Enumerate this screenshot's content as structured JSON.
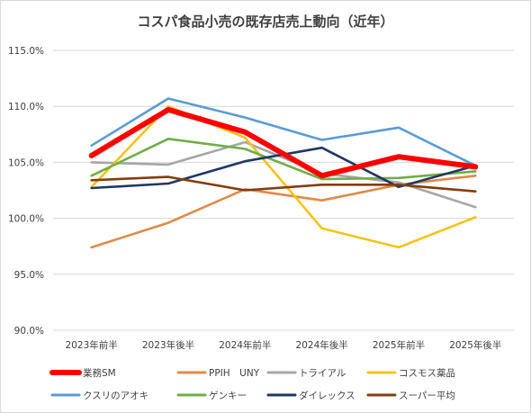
{
  "chart_data": {
    "type": "line",
    "title": "コスパ食品小売の既存店売上動向（近年）",
    "xlabel": "",
    "ylabel": "",
    "categories": [
      "2023年前半",
      "2023年後半",
      "2024年前半",
      "2024年後半",
      "2025年前半",
      "2025年後半"
    ],
    "ylim": [
      90.0,
      115.0
    ],
    "yticks": [
      "90.0%",
      "95.0%",
      "100.0%",
      "105.0%",
      "110.0%",
      "115.0%"
    ],
    "ytick_values": [
      90,
      95,
      100,
      105,
      110,
      115
    ],
    "grid": true,
    "legend_position": "bottom",
    "series": [
      {
        "name": "業務SM",
        "color": "#ff0000",
        "emphasis": true,
        "values": [
          105.6,
          109.7,
          107.7,
          103.8,
          105.5,
          104.6
        ]
      },
      {
        "name": "PPIH　UNY",
        "color": "#e08a47",
        "emphasis": false,
        "values": [
          97.4,
          99.6,
          102.6,
          101.6,
          103.0,
          103.8
        ]
      },
      {
        "name": "トライアル",
        "color": "#a6a6a6",
        "emphasis": false,
        "values": [
          105.0,
          104.8,
          106.8,
          104.0,
          103.2,
          101.0
        ]
      },
      {
        "name": "コスモス薬品",
        "color": "#f5c316",
        "emphasis": false,
        "values": [
          102.8,
          110.0,
          107.2,
          99.1,
          97.4,
          100.1
        ]
      },
      {
        "name": "クスリのアオキ",
        "color": "#5b9bd5",
        "emphasis": false,
        "values": [
          106.5,
          110.7,
          109.0,
          107.0,
          108.1,
          104.7
        ]
      },
      {
        "name": "ゲンキー",
        "color": "#70ad47",
        "emphasis": false,
        "values": [
          103.8,
          107.1,
          106.2,
          103.5,
          103.6,
          104.2
        ]
      },
      {
        "name": "ダイレックス",
        "color": "#1f3864",
        "emphasis": false,
        "values": [
          102.7,
          103.1,
          105.1,
          106.3,
          102.8,
          104.7
        ]
      },
      {
        "name": "スーパー平均",
        "color": "#843c0c",
        "emphasis": false,
        "values": [
          103.4,
          103.7,
          102.5,
          103.0,
          103.0,
          102.4
        ]
      }
    ]
  }
}
